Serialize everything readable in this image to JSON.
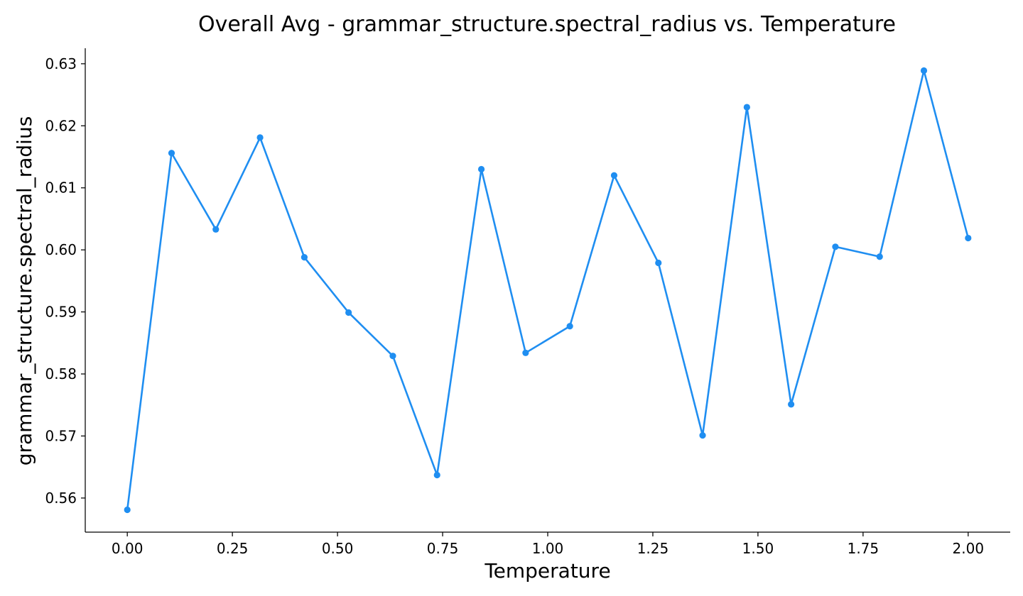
{
  "chart_data": {
    "type": "line",
    "title": "Overall Avg - grammar_structure.spectral_radius vs. Temperature",
    "xlabel": "Temperature",
    "ylabel": "grammar_structure.spectral_radius",
    "xlim": [
      -0.1,
      2.1
    ],
    "ylim": [
      0.5545,
      0.6325
    ],
    "xticks": [
      0.0,
      0.25,
      0.5,
      0.75,
      1.0,
      1.25,
      1.5,
      1.75,
      2.0
    ],
    "xtick_labels": [
      "0.00",
      "0.25",
      "0.50",
      "0.75",
      "1.00",
      "1.25",
      "1.50",
      "1.75",
      "2.00"
    ],
    "yticks": [
      0.56,
      0.57,
      0.58,
      0.59,
      0.6,
      0.61,
      0.62,
      0.63
    ],
    "ytick_labels": [
      "0.56",
      "0.57",
      "0.58",
      "0.59",
      "0.60",
      "0.61",
      "0.62",
      "0.63"
    ],
    "grid": false,
    "series": [
      {
        "color": "#1f8ef1",
        "marker": "circle",
        "points": [
          {
            "x": 0.0,
            "y": 0.5581
          },
          {
            "x": 0.1053,
            "y": 0.6156
          },
          {
            "x": 0.2105,
            "y": 0.6033
          },
          {
            "x": 0.3158,
            "y": 0.6181
          },
          {
            "x": 0.4211,
            "y": 0.5988
          },
          {
            "x": 0.5263,
            "y": 0.5899
          },
          {
            "x": 0.6316,
            "y": 0.5829
          },
          {
            "x": 0.7368,
            "y": 0.5637
          },
          {
            "x": 0.8421,
            "y": 0.613
          },
          {
            "x": 0.9474,
            "y": 0.5834
          },
          {
            "x": 1.0526,
            "y": 0.5877
          },
          {
            "x": 1.1579,
            "y": 0.612
          },
          {
            "x": 1.2632,
            "y": 0.5979
          },
          {
            "x": 1.3684,
            "y": 0.5701
          },
          {
            "x": 1.4737,
            "y": 0.623
          },
          {
            "x": 1.5789,
            "y": 0.5751
          },
          {
            "x": 1.6842,
            "y": 0.6005
          },
          {
            "x": 1.7895,
            "y": 0.5989
          },
          {
            "x": 1.8947,
            "y": 0.6289
          },
          {
            "x": 2.0,
            "y": 0.6019
          }
        ]
      }
    ]
  }
}
